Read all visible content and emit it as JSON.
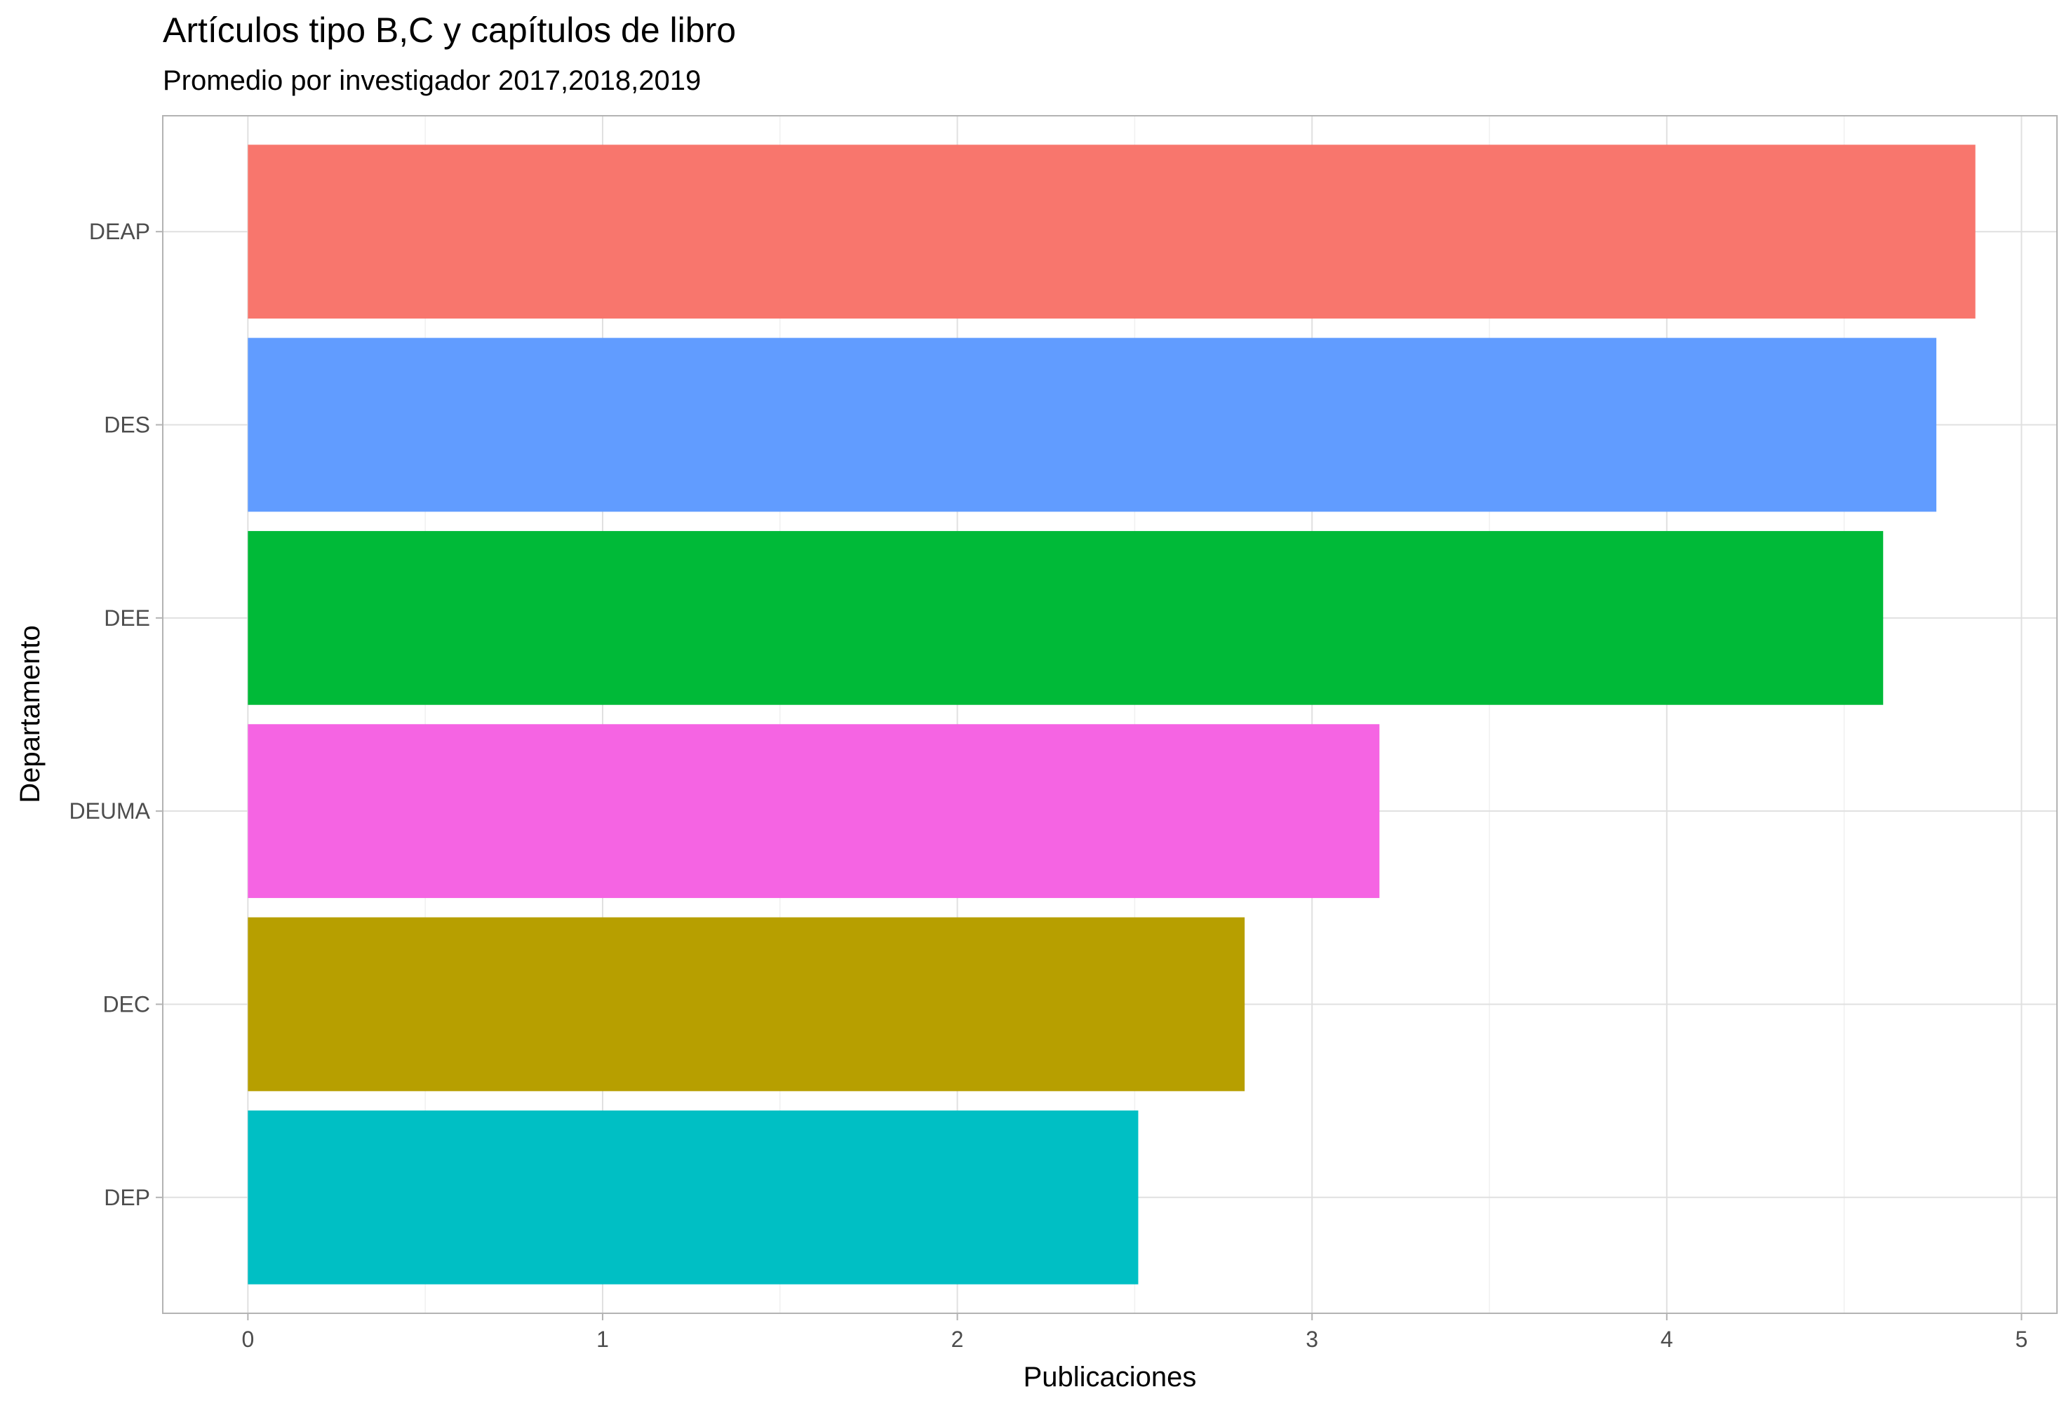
{
  "chart_data": {
    "type": "bar",
    "orientation": "horizontal",
    "title": "Artículos tipo B,C y capítulos de libro",
    "subtitle": "Promedio por investigador 2017,2018,2019",
    "xlabel": "Publicaciones",
    "ylabel": "Departamento",
    "categories": [
      "DEAP",
      "DES",
      "DEE",
      "DEUMA",
      "DEC",
      "DEP"
    ],
    "values": [
      4.87,
      4.76,
      4.61,
      3.19,
      2.81,
      2.51
    ],
    "colors": [
      "#F8766D",
      "#619CFF",
      "#00BA38",
      "#F564E3",
      "#B79F00",
      "#00BFC4"
    ],
    "xlim": [
      -0.24,
      5.1
    ],
    "xticks": [
      0,
      1,
      2,
      3,
      4,
      5
    ],
    "xtick_labels": [
      "0",
      "1",
      "2",
      "3",
      "4",
      "5"
    ],
    "grid": true,
    "legend": "none",
    "theme": {
      "panel_border": "#b3b3b3",
      "grid_major": "#e0e0e0",
      "grid_minor": "#f0f0f0",
      "tick_color": "#4d4d4d",
      "tick_mark_color": "#b3b3b3"
    }
  }
}
